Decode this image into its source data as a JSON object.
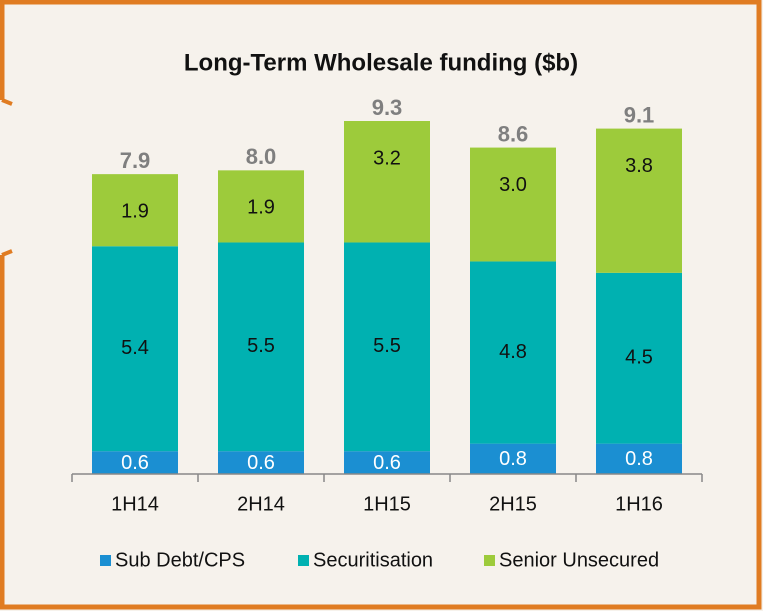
{
  "chart_data": {
    "type": "stacked_bar",
    "title": "Long-Term Wholesale funding ($b)",
    "categories": [
      "1H14",
      "2H14",
      "1H15",
      "2H15",
      "1H16"
    ],
    "series": [
      {
        "name": "Sub Debt/CPS",
        "color": "#1b8fd2",
        "values": [
          0.6,
          0.6,
          0.6,
          0.8,
          0.8
        ],
        "value_labels": [
          "0.6",
          "0.6",
          "0.6",
          "0.8",
          "0.8"
        ]
      },
      {
        "name": "Securitisation",
        "color": "#00b1b1",
        "values": [
          5.4,
          5.5,
          5.5,
          4.8,
          4.5
        ],
        "value_labels": [
          "5.4",
          "5.5",
          "5.5",
          "4.8",
          "4.5"
        ]
      },
      {
        "name": "Senior Unsecured",
        "color": "#9dcb3b",
        "values": [
          1.9,
          1.9,
          3.2,
          3.0,
          3.8
        ],
        "value_labels": [
          "1.9",
          "1.9",
          "3.2",
          "3.0",
          "3.8"
        ]
      }
    ],
    "totals": [
      7.9,
      8.0,
      9.3,
      8.6,
      9.1
    ],
    "total_labels": [
      "7.9",
      "8.0",
      "9.3",
      "8.6",
      "9.1"
    ],
    "label_colors": [
      "#ffffff",
      "#111111",
      "#111111"
    ],
    "total_color": "#7f7f7f"
  }
}
